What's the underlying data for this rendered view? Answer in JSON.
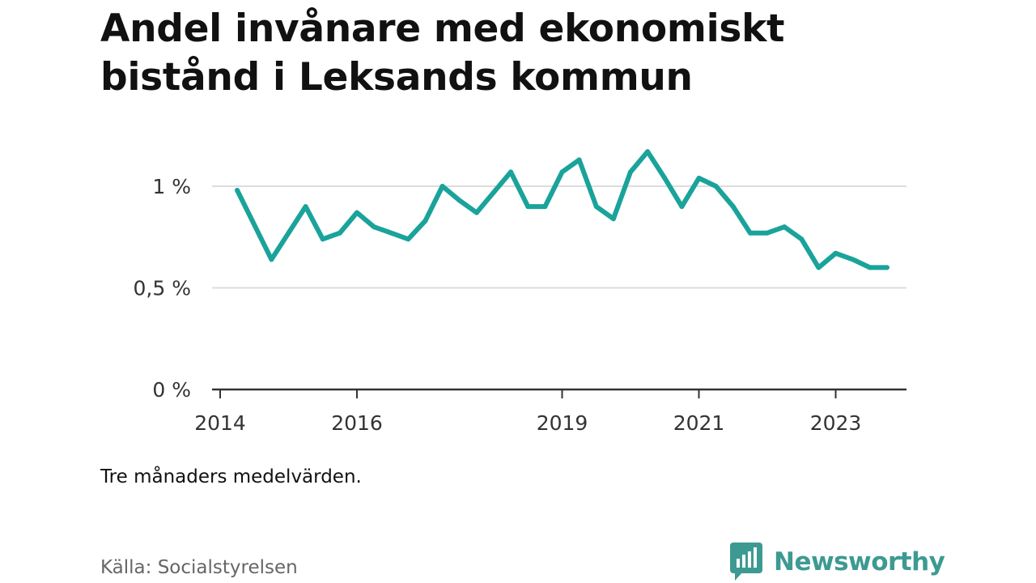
{
  "title": "Andel invånare med ekonomiskt bistånd i Leksands kommun",
  "note": "Tre månaders medelvärden.",
  "source": "Källa: Socialstyrelsen",
  "brand": {
    "name": "Newsworthy",
    "icon": "newsworthy-logo-icon",
    "color": "#3d9a92"
  },
  "chart_data": {
    "type": "line",
    "title": "Andel invånare med ekonomiskt bistånd i Leksands kommun",
    "xlabel": "",
    "ylabel": "",
    "x_ticks": [
      "2014",
      "2016",
      "2019",
      "2021",
      "2023"
    ],
    "y_ticks": [
      "0 %",
      "0,5 %",
      "1 %"
    ],
    "ylim": [
      0,
      1.2
    ],
    "xlim": [
      "2014-01",
      "2024-01"
    ],
    "grid": true,
    "line_color": "#1aa39a",
    "series": [
      {
        "x": [
          "2014-04",
          "2014-10",
          "2015-01",
          "2015-04",
          "2015-07",
          "2015-10",
          "2016-01",
          "2016-04",
          "2016-07",
          "2016-10",
          "2017-01",
          "2017-04",
          "2017-07",
          "2017-10",
          "2018-01",
          "2018-04",
          "2018-07",
          "2018-10",
          "2019-01",
          "2019-04",
          "2019-07",
          "2019-10",
          "2020-01",
          "2020-04",
          "2020-07",
          "2020-10",
          "2021-01",
          "2021-04",
          "2021-07",
          "2021-10",
          "2022-01",
          "2022-04",
          "2022-07",
          "2022-10",
          "2023-01",
          "2023-04",
          "2023-07",
          "2023-10"
        ],
        "values": [
          0.98,
          0.64,
          0.77,
          0.9,
          0.74,
          0.77,
          0.87,
          0.8,
          0.77,
          0.74,
          0.83,
          1.0,
          0.93,
          0.87,
          0.97,
          1.07,
          0.9,
          0.9,
          1.07,
          1.13,
          0.9,
          0.84,
          1.07,
          1.17,
          1.04,
          0.9,
          1.04,
          1.0,
          0.9,
          0.77,
          0.77,
          0.8,
          0.74,
          0.6,
          0.67,
          0.64,
          0.6,
          0.6
        ]
      }
    ]
  }
}
